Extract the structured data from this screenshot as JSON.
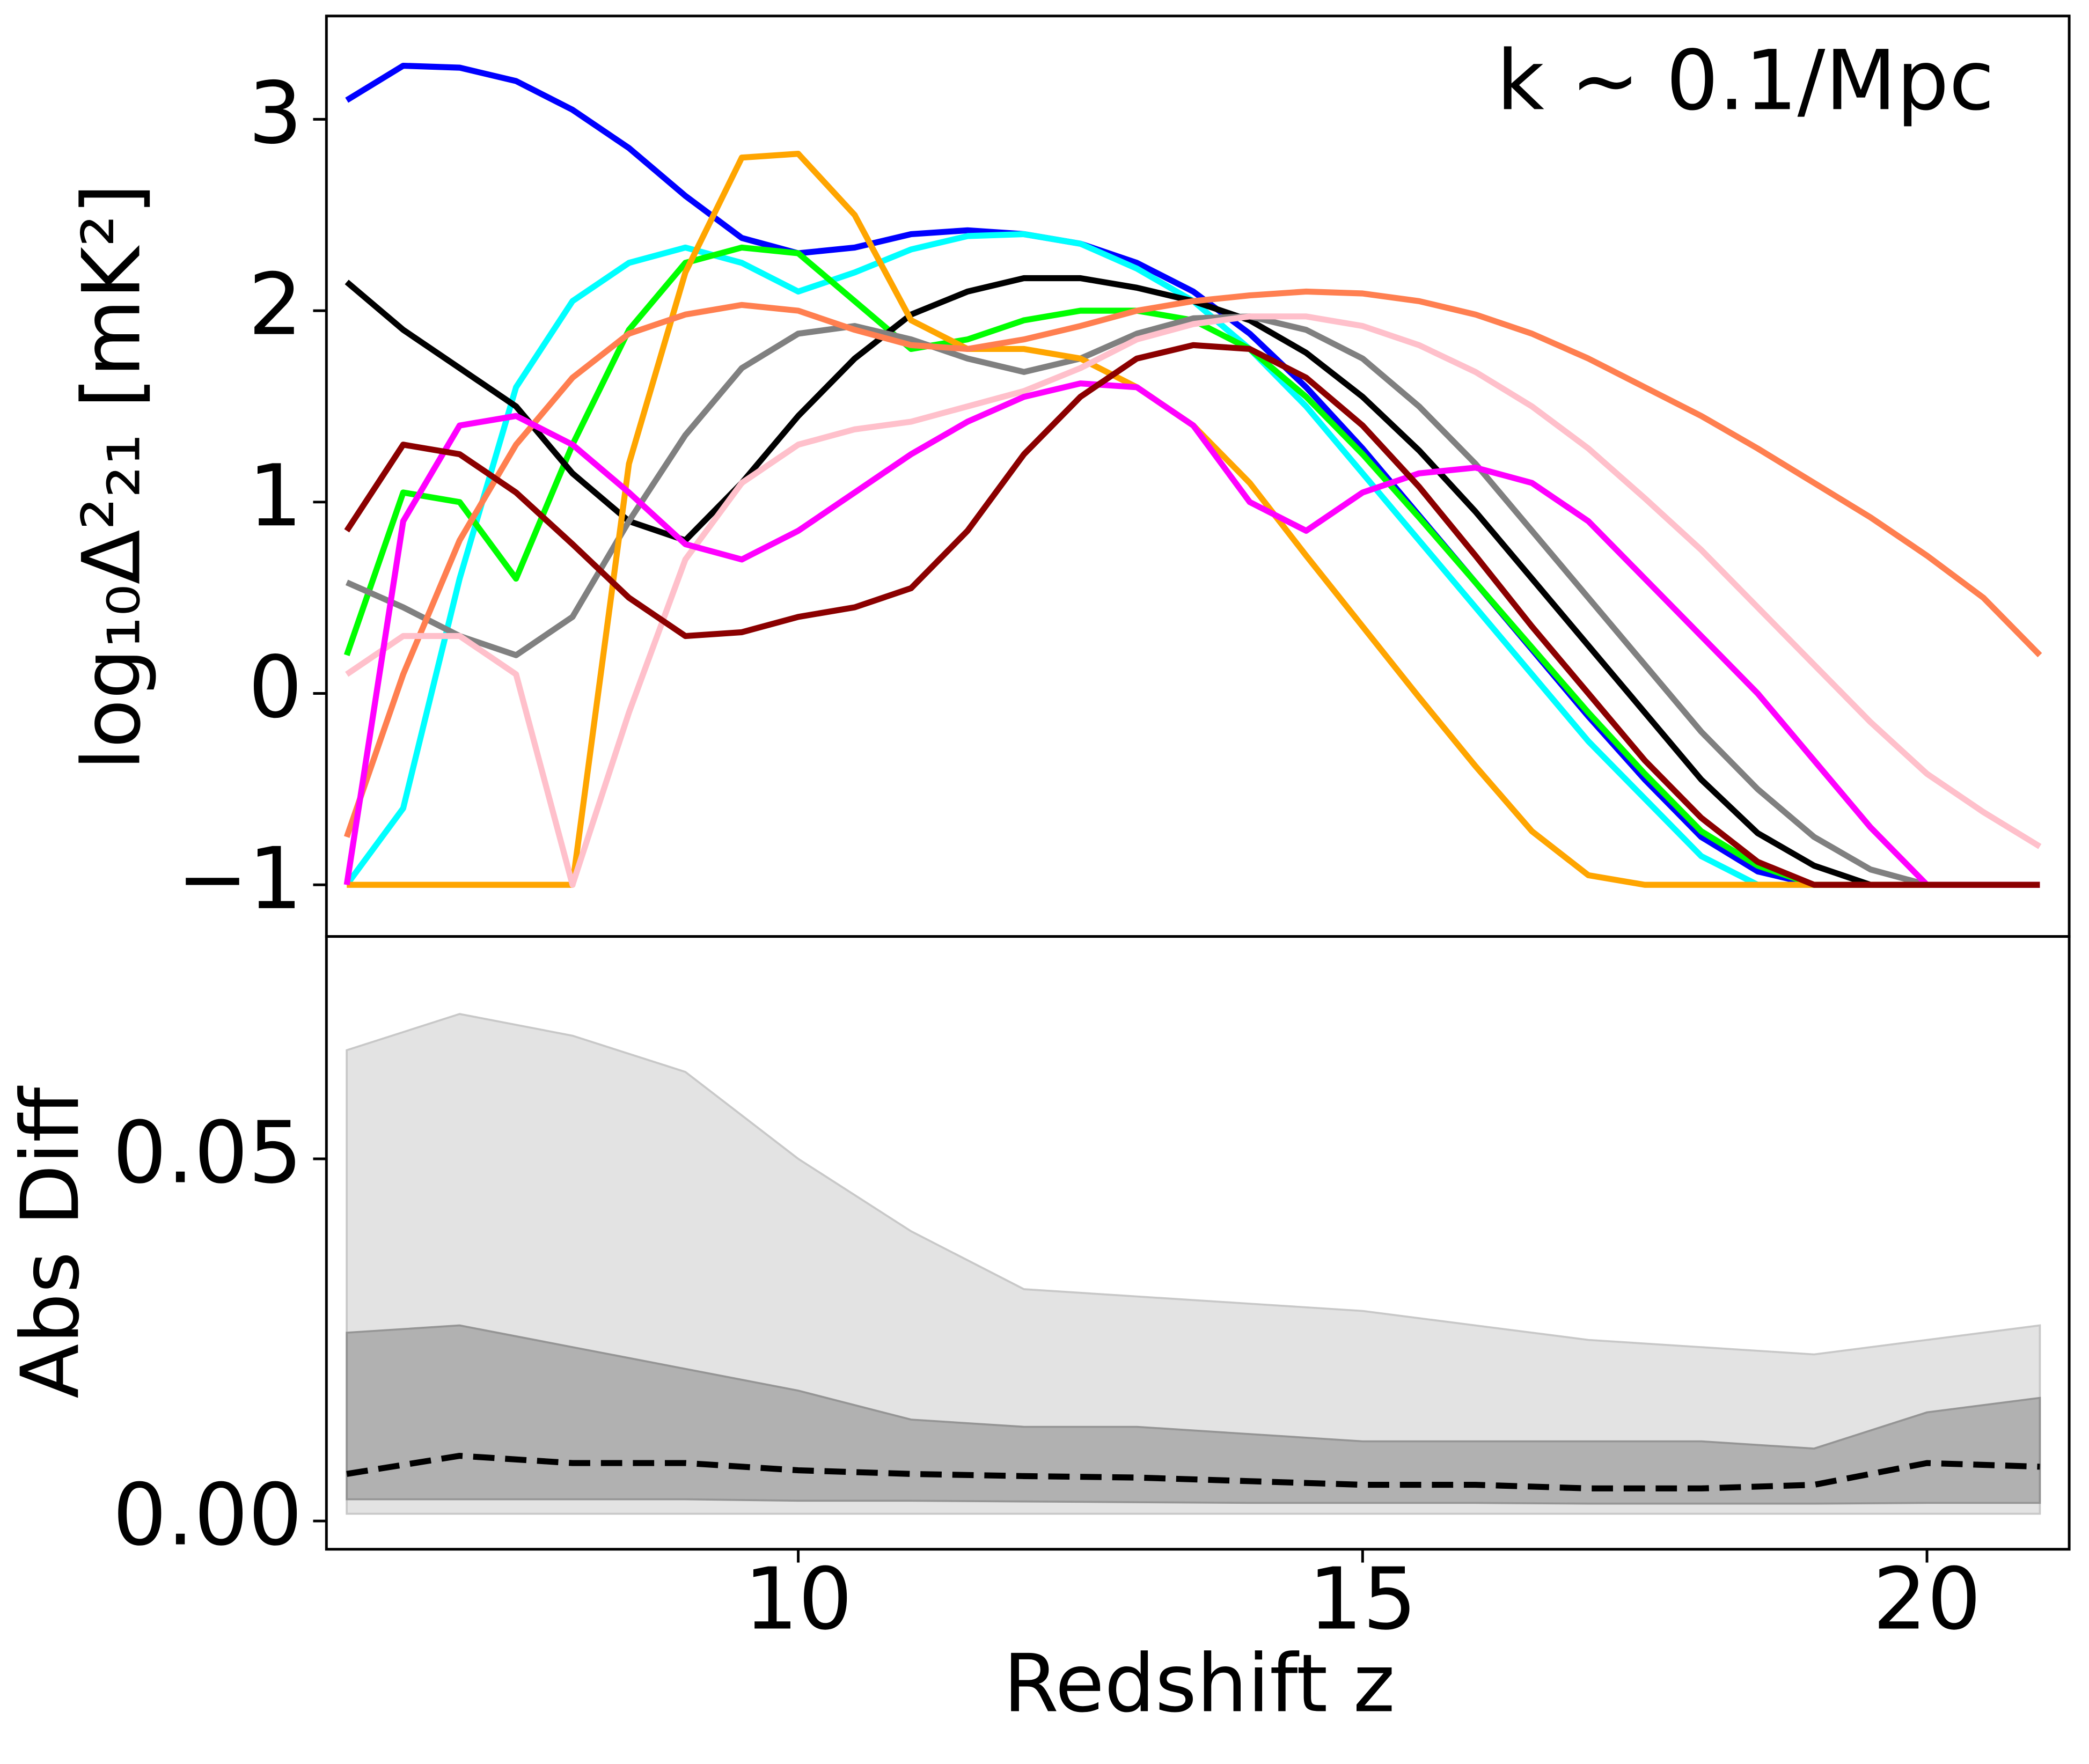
{
  "chart_data": [
    {
      "type": "line",
      "annotation": "k ~ 0.1/Mpc",
      "ylabel": "log₁₀Δ²₂₁ [mK²]",
      "xlim": [
        5.82,
        21.26
      ],
      "ylim": [
        -1.27,
        3.54
      ],
      "yticks": [
        {
          "value": -1,
          "label": "−1"
        },
        0,
        1,
        2,
        3
      ],
      "x": [
        6,
        6.5,
        7,
        7.5,
        8,
        8.5,
        9,
        9.5,
        10,
        10.5,
        11,
        11.5,
        12,
        12.5,
        13,
        13.5,
        14,
        14.5,
        15,
        15.5,
        16,
        16.5,
        17,
        17.5,
        18,
        18.5,
        19,
        19.5,
        20,
        20.5,
        21
      ],
      "series": [
        {
          "color": "#0000ff",
          "values": [
            3.1,
            3.28,
            3.27,
            3.2,
            3.05,
            2.85,
            2.6,
            2.38,
            2.3,
            2.33,
            2.4,
            2.42,
            2.4,
            2.35,
            2.25,
            2.1,
            1.88,
            1.6,
            1.28,
            0.93,
            0.58,
            0.23,
            -0.12,
            -0.45,
            -0.75,
            -0.93,
            -1,
            -1,
            -1,
            -1,
            -1
          ]
        },
        {
          "color": "#00ffff",
          "values": [
            -1,
            -0.6,
            0.6,
            1.6,
            2.05,
            2.25,
            2.33,
            2.25,
            2.1,
            2.2,
            2.32,
            2.39,
            2.4,
            2.35,
            2.22,
            2.05,
            1.8,
            1.5,
            1.15,
            0.8,
            0.45,
            0.1,
            -0.25,
            -0.55,
            -0.85,
            -1,
            -1,
            -1,
            -1,
            -1,
            -1
          ]
        },
        {
          "color": "#00ff00",
          "values": [
            0.2,
            1.05,
            1.0,
            0.6,
            1.3,
            1.9,
            2.25,
            2.33,
            2.3,
            2.05,
            1.8,
            1.85,
            1.95,
            2.0,
            2.0,
            1.95,
            1.8,
            1.55,
            1.25,
            0.92,
            0.58,
            0.24,
            -0.1,
            -0.42,
            -0.72,
            -0.9,
            -1,
            -1,
            -1,
            -1,
            -1
          ]
        },
        {
          "color": "#000000",
          "values": [
            2.15,
            1.9,
            1.7,
            1.5,
            1.15,
            0.9,
            0.8,
            1.1,
            1.45,
            1.75,
            1.98,
            2.1,
            2.17,
            2.17,
            2.12,
            2.05,
            1.95,
            1.78,
            1.55,
            1.27,
            0.95,
            0.6,
            0.25,
            -0.1,
            -0.45,
            -0.73,
            -0.9,
            -1,
            -1,
            -1,
            -1
          ]
        },
        {
          "color": "#808080",
          "values": [
            0.58,
            0.45,
            0.3,
            0.2,
            0.4,
            0.9,
            1.35,
            1.7,
            1.88,
            1.92,
            1.85,
            1.75,
            1.68,
            1.75,
            1.88,
            1.96,
            1.97,
            1.9,
            1.75,
            1.5,
            1.2,
            0.85,
            0.5,
            0.15,
            -0.2,
            -0.5,
            -0.75,
            -0.92,
            -1,
            -1,
            -1
          ]
        },
        {
          "color": "#ffa500",
          "values": [
            -1,
            -1,
            -1,
            -1,
            -1,
            1.2,
            2.2,
            2.8,
            2.82,
            2.5,
            1.95,
            1.8,
            1.8,
            1.75,
            1.6,
            1.4,
            1.1,
            0.72,
            0.35,
            -0.02,
            -0.38,
            -0.72,
            -0.95,
            -1,
            -1,
            -1,
            -1,
            -1,
            -1,
            -1,
            -1
          ]
        },
        {
          "color": "#ff7f50",
          "values": [
            -0.75,
            0.1,
            0.8,
            1.3,
            1.65,
            1.88,
            1.98,
            2.03,
            2.0,
            1.9,
            1.82,
            1.8,
            1.85,
            1.92,
            2.0,
            2.05,
            2.08,
            2.1,
            2.09,
            2.05,
            1.98,
            1.88,
            1.75,
            1.6,
            1.45,
            1.28,
            1.1,
            0.92,
            0.72,
            0.5,
            0.2
          ]
        },
        {
          "color": "#ffc0cb",
          "values": [
            0.1,
            0.3,
            0.3,
            0.1,
            -1,
            -0.1,
            0.7,
            1.1,
            1.3,
            1.38,
            1.42,
            1.5,
            1.58,
            1.7,
            1.85,
            1.93,
            1.97,
            1.97,
            1.92,
            1.82,
            1.68,
            1.5,
            1.28,
            1.02,
            0.75,
            0.45,
            0.15,
            -0.15,
            -0.42,
            -0.62,
            -0.8
          ]
        },
        {
          "color": "#ff00ff",
          "values": [
            -1,
            0.9,
            1.4,
            1.45,
            1.3,
            1.05,
            0.78,
            0.7,
            0.85,
            1.05,
            1.25,
            1.42,
            1.55,
            1.62,
            1.6,
            1.4,
            1.0,
            0.85,
            1.05,
            1.15,
            1.18,
            1.1,
            0.9,
            0.6,
            0.3,
            0.0,
            -0.35,
            -0.7,
            -1,
            -1,
            -1
          ]
        },
        {
          "color": "#8b0000",
          "values": [
            0.85,
            1.3,
            1.25,
            1.05,
            0.78,
            0.5,
            0.3,
            0.32,
            0.4,
            0.45,
            0.55,
            0.85,
            1.25,
            1.55,
            1.75,
            1.82,
            1.8,
            1.65,
            1.4,
            1.08,
            0.72,
            0.35,
            0.0,
            -0.35,
            -0.65,
            -0.88,
            -1,
            -1,
            -1,
            -1,
            -1
          ]
        }
      ]
    },
    {
      "type": "line",
      "ylabel": "Abs Diff",
      "xlabel": "Redshift z",
      "xlim": [
        5.82,
        21.26
      ],
      "ylim": [
        -0.0039,
        0.0807
      ],
      "xticks": [
        10,
        15,
        20
      ],
      "yticks": [
        {
          "value": 0,
          "label": "0.00"
        },
        0.05
      ],
      "x": [
        6,
        7,
        8,
        9,
        10,
        11,
        12,
        13,
        14,
        15,
        16,
        17,
        18,
        19,
        20,
        21
      ],
      "bands": [
        {
          "color": "#e3e3e3",
          "upper": [
            0.065,
            0.07,
            0.067,
            0.062,
            0.05,
            0.04,
            0.032,
            0.031,
            0.03,
            0.029,
            0.027,
            0.025,
            0.024,
            0.023,
            0.025,
            0.027
          ],
          "lower": [
            0.001,
            0.001,
            0.001,
            0.001,
            0.001,
            0.001,
            0.001,
            0.001,
            0.001,
            0.001,
            0.001,
            0.001,
            0.001,
            0.001,
            0.001,
            0.001
          ]
        },
        {
          "color": "#a9a9a9",
          "upper": [
            0.026,
            0.027,
            0.024,
            0.021,
            0.018,
            0.014,
            0.013,
            0.013,
            0.012,
            0.011,
            0.011,
            0.011,
            0.011,
            0.01,
            0.015,
            0.017
          ],
          "lower": [
            0.003,
            0.003,
            0.003,
            0.003,
            0.0028,
            0.0028,
            0.0027,
            0.0026,
            0.0025,
            0.0025,
            0.0025,
            0.0024,
            0.0024,
            0.0024,
            0.0025,
            0.0025
          ]
        }
      ],
      "series": [
        {
          "color": "#000000",
          "linestyle": "dashed",
          "values": [
            0.0065,
            0.009,
            0.008,
            0.008,
            0.007,
            0.0065,
            0.0062,
            0.006,
            0.0055,
            0.005,
            0.005,
            0.0045,
            0.0045,
            0.005,
            0.008,
            0.0075
          ]
        }
      ]
    }
  ]
}
